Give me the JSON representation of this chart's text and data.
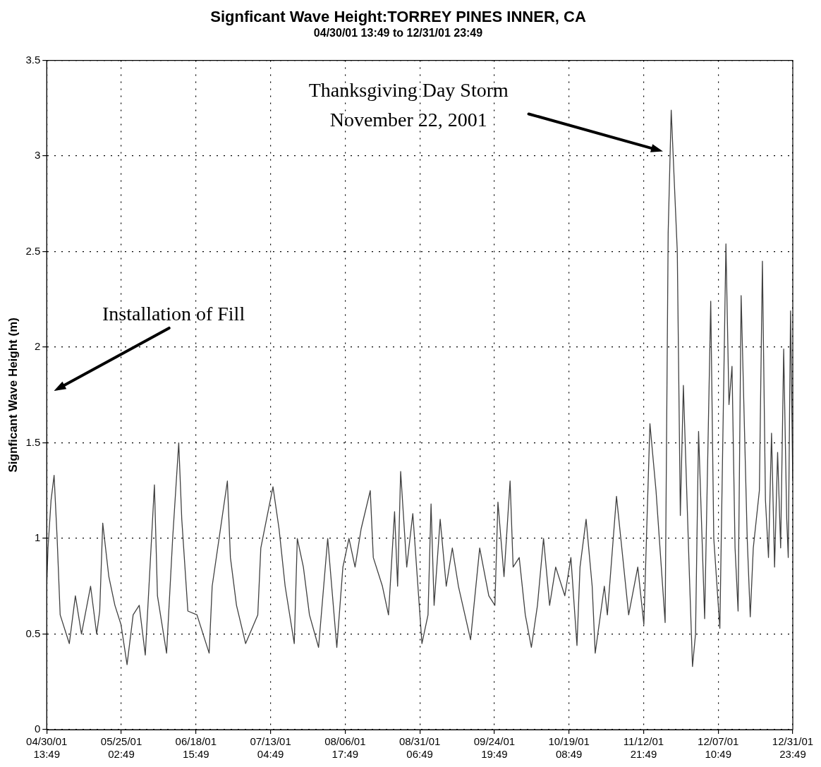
{
  "chart_data": {
    "type": "line",
    "title": "Signficant Wave Height:TORREY PINES INNER, CA",
    "subtitle": "04/30/01 13:49 to 12/31/01 23:49",
    "ylabel": "Signficant Wave Height (m)",
    "x": [
      "2001-04-30T13:49",
      "2001-05-01",
      "2001-05-02",
      "2001-05-03",
      "2001-05-04",
      "2001-05-05",
      "2001-05-07",
      "2001-05-08",
      "2001-05-10",
      "2001-05-12",
      "2001-05-15",
      "2001-05-17",
      "2001-05-18",
      "2001-05-19",
      "2001-05-21",
      "2001-05-23",
      "2001-05-25",
      "2001-05-27",
      "2001-05-29",
      "2001-05-31",
      "2001-06-02",
      "2001-06-05",
      "2001-06-06",
      "2001-06-09",
      "2001-06-11",
      "2001-06-13",
      "2001-06-14",
      "2001-06-16",
      "2001-06-19",
      "2001-06-23",
      "2001-06-24",
      "2001-06-29",
      "2001-06-30",
      "2001-07-02",
      "2001-07-05",
      "2001-07-09",
      "2001-07-10",
      "2001-07-14",
      "2001-07-16",
      "2001-07-18",
      "2001-07-21",
      "2001-07-22",
      "2001-07-24",
      "2001-07-26",
      "2001-07-29",
      "2001-08-01",
      "2001-08-04",
      "2001-08-06",
      "2001-08-08",
      "2001-08-10",
      "2001-08-12",
      "2001-08-15",
      "2001-08-16",
      "2001-08-19",
      "2001-08-21",
      "2001-08-23",
      "2001-08-24",
      "2001-08-25",
      "2001-08-27",
      "2001-08-29",
      "2001-09-01",
      "2001-09-03",
      "2001-09-04",
      "2001-09-05",
      "2001-09-07",
      "2001-09-09",
      "2001-09-11",
      "2001-09-13",
      "2001-09-17",
      "2001-09-20",
      "2001-09-23",
      "2001-09-25",
      "2001-09-26",
      "2001-09-28",
      "2001-09-30",
      "2001-10-01",
      "2001-10-03",
      "2001-10-05",
      "2001-10-07",
      "2001-10-09",
      "2001-10-11",
      "2001-10-13",
      "2001-10-15",
      "2001-10-18",
      "2001-10-20",
      "2001-10-22",
      "2001-10-23",
      "2001-10-25",
      "2001-10-27",
      "2001-10-28",
      "2001-10-31",
      "2001-11-01",
      "2001-11-04",
      "2001-11-08",
      "2001-11-11",
      "2001-11-13",
      "2001-11-15",
      "2001-11-17",
      "2001-11-20",
      "2001-11-21",
      "2001-11-22",
      "2001-11-24",
      "2001-11-25",
      "2001-11-26",
      "2001-11-28",
      "2001-11-29",
      "2001-11-30",
      "2001-12-01",
      "2001-12-03",
      "2001-12-05",
      "2001-12-06",
      "2001-12-08",
      "2001-12-10",
      "2001-12-11",
      "2001-12-12",
      "2001-12-13",
      "2001-12-14",
      "2001-12-15",
      "2001-12-17",
      "2001-12-18",
      "2001-12-19",
      "2001-12-21",
      "2001-12-22",
      "2001-12-23",
      "2001-12-24",
      "2001-12-25",
      "2001-12-26",
      "2001-12-27",
      "2001-12-28",
      "2001-12-29",
      "2001-12-30",
      "2001-12-30T12:00",
      "2001-12-31T06:00",
      "2001-12-31T23:49"
    ],
    "series": [
      {
        "color": "#404040",
        "values": [
          0.75,
          0.95,
          1.2,
          1.33,
          1.0,
          0.6,
          0.5,
          0.45,
          0.7,
          0.5,
          0.75,
          0.5,
          0.62,
          1.08,
          0.8,
          0.65,
          0.55,
          0.34,
          0.6,
          0.65,
          0.39,
          1.28,
          0.7,
          0.4,
          1.0,
          1.5,
          1.1,
          0.62,
          0.6,
          0.4,
          0.75,
          1.3,
          0.9,
          0.65,
          0.45,
          0.6,
          0.95,
          1.27,
          1.05,
          0.75,
          0.45,
          1.0,
          0.85,
          0.6,
          0.43,
          1.0,
          0.43,
          0.85,
          1.0,
          0.85,
          1.05,
          1.25,
          0.9,
          0.75,
          0.6,
          1.14,
          0.75,
          1.35,
          0.85,
          1.13,
          0.45,
          0.6,
          1.18,
          0.65,
          1.1,
          0.75,
          0.95,
          0.75,
          0.47,
          0.95,
          0.7,
          0.65,
          1.19,
          0.8,
          1.3,
          0.85,
          0.9,
          0.6,
          0.43,
          0.65,
          1.0,
          0.65,
          0.85,
          0.7,
          0.9,
          0.44,
          0.85,
          1.1,
          0.75,
          0.4,
          0.75,
          0.6,
          1.22,
          0.6,
          0.85,
          0.55,
          1.6,
          1.25,
          0.56,
          2.6,
          3.24,
          2.5,
          1.12,
          1.8,
          0.8,
          0.33,
          0.5,
          1.56,
          0.58,
          2.24,
          1.0,
          0.53,
          2.54,
          1.7,
          1.9,
          0.95,
          0.62,
          2.27,
          1.0,
          0.59,
          0.95,
          1.25,
          2.45,
          1.2,
          0.9,
          1.55,
          0.85,
          1.45,
          0.95,
          1.99,
          1.1,
          0.9,
          2.19,
          1.3
        ]
      }
    ],
    "xlim": [
      "2001-04-30T13:49",
      "2001-12-31T23:49"
    ],
    "xticks": [
      {
        "value": "2001-04-30T13:49",
        "label": "04/30/01 13:49"
      },
      {
        "value": "2001-05-25T02:49",
        "label": "05/25/01 02:49"
      },
      {
        "value": "2001-06-18T15:49",
        "label": "06/18/01 15:49"
      },
      {
        "value": "2001-07-13T04:49",
        "label": "07/13/01 04:49"
      },
      {
        "value": "2001-08-06T17:49",
        "label": "08/06/01 17:49"
      },
      {
        "value": "2001-08-31T06:49",
        "label": "08/31/01 06:49"
      },
      {
        "value": "2001-09-24T19:49",
        "label": "09/24/01 19:49"
      },
      {
        "value": "2001-10-19T08:49",
        "label": "10/19/01 08:49"
      },
      {
        "value": "2001-11-12T21:49",
        "label": "11/12/01 21:49"
      },
      {
        "value": "2001-12-07T10:49",
        "label": "12/07/01 10:49"
      },
      {
        "value": "2001-12-31T23:49",
        "label": "12/31/01 23:49"
      }
    ],
    "ylim": [
      0,
      3.5
    ],
    "yticks": [
      0,
      0.5,
      1,
      1.5,
      2,
      2.5,
      3,
      3.5
    ],
    "grid": true,
    "annotations": [
      "Thanksgiving Day Storm\nNovember 22, 2001",
      "Installation of Fill"
    ]
  }
}
